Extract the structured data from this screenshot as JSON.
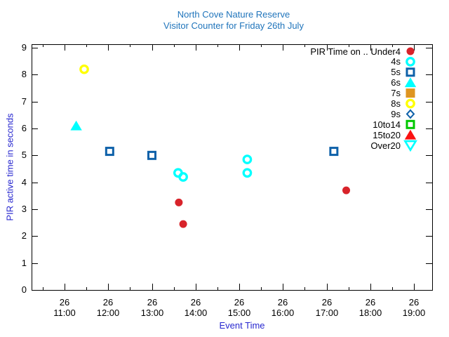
{
  "colors": {
    "title": "#1f74bb",
    "axis_label": "#2727cf",
    "tick_text": "#000000",
    "border": "#000000"
  },
  "chart_data": {
    "type": "scatter",
    "title_line1": "North Cove Nature Reserve",
    "title_line2": "Visitor Counter for Friday 26th July",
    "xlabel": "Event Time",
    "ylabel": "PIR active time in seconds",
    "ylim": [
      0,
      9
    ],
    "grid": false,
    "legend_position": "top-right-inside",
    "y_ticks": [
      "0",
      "1",
      "2",
      "3",
      "4",
      "5",
      "6",
      "7",
      "8",
      "9"
    ],
    "x_ticks": [
      {
        "date": "26",
        "time": "11:00"
      },
      {
        "date": "26",
        "time": "12:00"
      },
      {
        "date": "26",
        "time": "13:00"
      },
      {
        "date": "26",
        "time": "14:00"
      },
      {
        "date": "26",
        "time": "15:00"
      },
      {
        "date": "26",
        "time": "16:00"
      },
      {
        "date": "26",
        "time": "17:00"
      },
      {
        "date": "26",
        "time": "18:00"
      },
      {
        "date": "26",
        "time": "19:00"
      }
    ],
    "x_minor_tick_minutes": 30,
    "series": [
      {
        "legend_label": "PIR Time on .. Under4",
        "marker": "circle",
        "fill": true,
        "color": "#d8232a",
        "points": [
          {
            "time": "13:37",
            "value": 3.25
          },
          {
            "time": "13:43",
            "value": 2.45
          },
          {
            "time": "17:27",
            "value": 3.7
          }
        ]
      },
      {
        "legend_label": "4s",
        "marker": "circle",
        "fill": false,
        "color": "#00ffff",
        "points": [
          {
            "time": "13:36",
            "value": 4.35
          },
          {
            "time": "13:43",
            "value": 4.2
          },
          {
            "time": "15:11",
            "value": 4.85
          },
          {
            "time": "15:11",
            "value": 4.35
          }
        ]
      },
      {
        "legend_label": "5s",
        "marker": "square",
        "fill": false,
        "color": "#0e61a9",
        "points": [
          {
            "time": "12:02",
            "value": 5.15
          },
          {
            "time": "13:00",
            "value": 5.0
          },
          {
            "time": "17:10",
            "value": 5.15
          }
        ]
      },
      {
        "legend_label": "6s",
        "marker": "triangle-up",
        "fill": true,
        "color": "#00ffff",
        "points": [
          {
            "time": "11:16",
            "value": 6.1
          }
        ]
      },
      {
        "legend_label": "7s",
        "marker": "square",
        "fill": true,
        "color": "#de9521",
        "points": []
      },
      {
        "legend_label": "8s",
        "marker": "circle",
        "fill": false,
        "color": "#ffff00",
        "points": [
          {
            "time": "11:27",
            "value": 8.2
          }
        ]
      },
      {
        "legend_label": "9s",
        "marker": "diamond",
        "fill": false,
        "color": "#0e61a9",
        "points": []
      },
      {
        "legend_label": "10to14",
        "marker": "square",
        "fill": false,
        "color": "#00c800",
        "points": []
      },
      {
        "legend_label": "15to20",
        "marker": "triangle-up",
        "fill": true,
        "color": "#fb1111",
        "points": []
      },
      {
        "legend_label": "Over20",
        "marker": "triangle-down",
        "fill": false,
        "color": "#00ffff",
        "points": []
      }
    ]
  }
}
